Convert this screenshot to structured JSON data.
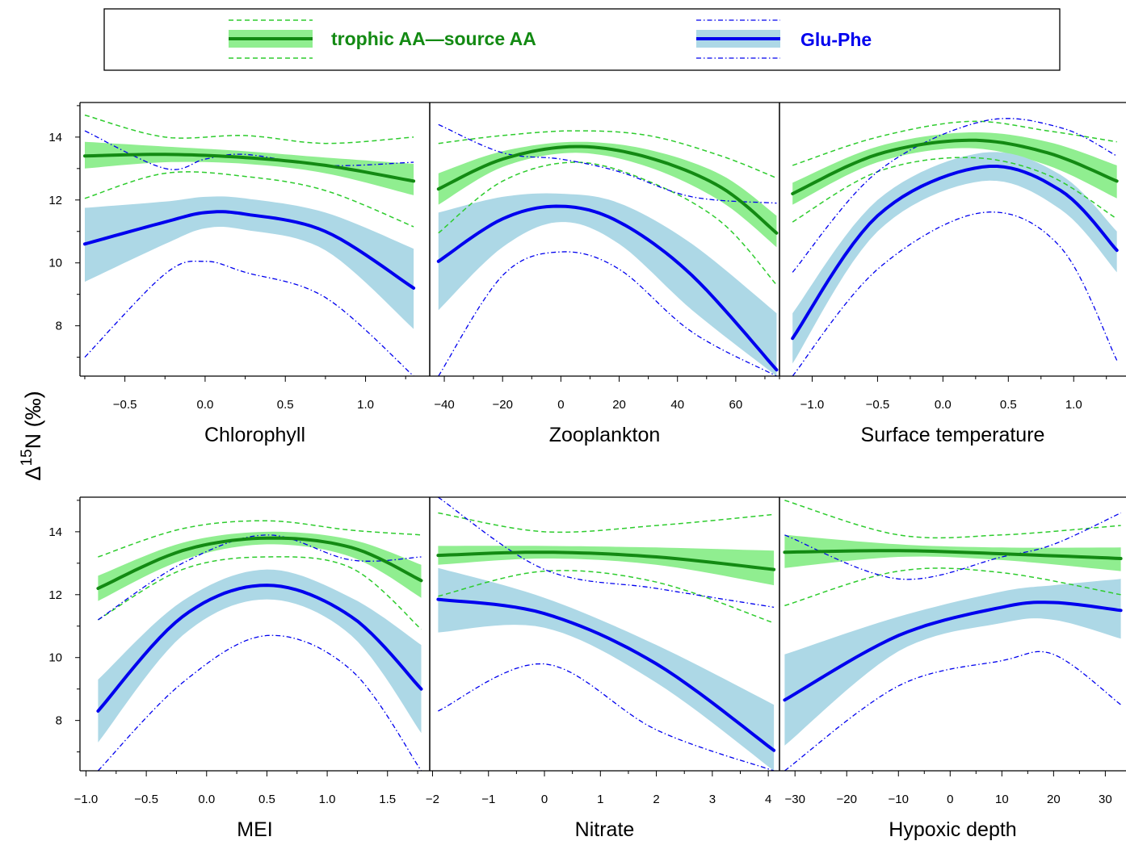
{
  "legend": {
    "entries": [
      {
        "label": "trophic AA—source AA",
        "line_color": "#138a13",
        "band_color": "#90ee90",
        "ci_line_style": "dashed"
      },
      {
        "label": "Glu-Phe",
        "line_color": "#0000ee",
        "band_color": "#add8e6",
        "ci_line_style": "dotdash"
      }
    ]
  },
  "ylabel": {
    "base": "Δ",
    "sup": "15",
    "rest": "N  (‰)"
  },
  "chart_data": [
    {
      "type": "line",
      "xlabel": "Chlorophyll",
      "xlim": [
        -0.78,
        1.4
      ],
      "ylim": [
        6.4,
        15.1
      ],
      "xticks": [
        -0.5,
        0.0,
        0.5,
        1.0
      ],
      "xtick_labels": [
        "−0.5",
        "0.0",
        "0.5",
        "1.0"
      ],
      "yticks": [
        8,
        10,
        12,
        14
      ],
      "ytick_labels": [
        "8",
        "10",
        "12",
        "14"
      ],
      "series": [
        {
          "name": "trophic AA—source AA",
          "x": [
            -0.75,
            -0.25,
            0.25,
            0.75,
            1.3
          ],
          "y": [
            13.4,
            13.45,
            13.35,
            13.1,
            12.6
          ],
          "band_upper": [
            13.85,
            13.7,
            13.55,
            13.35,
            13.15
          ],
          "band_lower": [
            13.0,
            13.2,
            13.15,
            12.85,
            12.15
          ],
          "ci_upper": [
            14.7,
            14.0,
            14.05,
            13.8,
            14.0
          ],
          "ci_lower": [
            12.05,
            12.85,
            12.75,
            12.3,
            11.15
          ]
        },
        {
          "name": "Glu-Phe",
          "x": [
            -0.75,
            -0.25,
            0.0,
            0.25,
            0.75,
            1.3
          ],
          "y": [
            10.6,
            11.3,
            11.6,
            11.55,
            11.0,
            9.2
          ],
          "band_upper": [
            11.75,
            11.95,
            12.1,
            12.05,
            11.6,
            10.45
          ],
          "band_lower": [
            9.4,
            10.6,
            11.1,
            11.05,
            10.4,
            7.9
          ],
          "ci_upper": [
            14.2,
            13.0,
            13.3,
            13.45,
            13.1,
            13.2
          ],
          "ci_lower": [
            7.0,
            9.65,
            10.05,
            9.7,
            8.9,
            6.4
          ]
        }
      ]
    },
    {
      "type": "line",
      "xlabel": "Zooplankton",
      "xlim": [
        -45,
        75
      ],
      "ylim": [
        6.4,
        15.1
      ],
      "xticks": [
        -40,
        -20,
        0,
        20,
        40,
        60
      ],
      "xtick_labels": [
        "−40",
        "−20",
        "0",
        "20",
        "40",
        "60"
      ],
      "yticks": [
        8,
        10,
        12,
        14
      ],
      "ytick_labels": [
        "8",
        "10",
        "12",
        "14"
      ],
      "series": [
        {
          "name": "trophic AA—source AA",
          "x": [
            -42,
            -20,
            5,
            30,
            55,
            74
          ],
          "y": [
            12.35,
            13.3,
            13.7,
            13.35,
            12.4,
            10.95
          ],
          "band_upper": [
            12.85,
            13.55,
            13.85,
            13.6,
            12.8,
            11.5
          ],
          "band_lower": [
            11.85,
            13.05,
            13.5,
            13.05,
            11.95,
            10.5
          ],
          "ci_upper": [
            13.8,
            14.05,
            14.2,
            14.05,
            13.4,
            12.7
          ],
          "ci_lower": [
            10.95,
            12.6,
            13.2,
            12.6,
            11.3,
            9.3
          ]
        },
        {
          "name": "Glu-Phe",
          "x": [
            -42,
            -20,
            0,
            20,
            45,
            74
          ],
          "y": [
            10.05,
            11.4,
            11.8,
            11.3,
            9.6,
            6.6
          ],
          "band_upper": [
            11.6,
            12.1,
            12.2,
            11.9,
            10.6,
            8.4
          ],
          "band_lower": [
            8.5,
            10.5,
            11.3,
            10.6,
            8.5,
            6.4
          ],
          "ci_upper": [
            14.4,
            13.5,
            13.3,
            12.9,
            12.1,
            11.9
          ],
          "ci_lower": [
            6.4,
            9.6,
            10.35,
            9.8,
            7.8,
            6.4
          ]
        }
      ]
    },
    {
      "type": "line",
      "xlabel": "Surface temperature",
      "xlim": [
        -1.25,
        1.4
      ],
      "ylim": [
        6.4,
        15.1
      ],
      "xticks": [
        -1.0,
        -0.5,
        0.0,
        0.5,
        1.0
      ],
      "xtick_labels": [
        "−1.0",
        "−0.5",
        "0.0",
        "0.5",
        "1.0"
      ],
      "yticks": [
        8,
        10,
        12,
        14
      ],
      "ytick_labels": [
        "8",
        "10",
        "12",
        "14"
      ],
      "series": [
        {
          "name": "trophic AA—source AA",
          "x": [
            -1.15,
            -0.5,
            0.2,
            0.8,
            1.33
          ],
          "y": [
            12.2,
            13.45,
            13.9,
            13.5,
            12.6
          ],
          "band_upper": [
            12.55,
            13.7,
            14.15,
            13.85,
            13.1
          ],
          "band_lower": [
            11.85,
            13.2,
            13.65,
            13.1,
            12.05
          ],
          "ci_upper": [
            13.1,
            14.0,
            14.5,
            14.2,
            13.85
          ],
          "ci_lower": [
            11.3,
            12.9,
            13.35,
            12.8,
            11.4
          ]
        },
        {
          "name": "Glu-Phe",
          "x": [
            -1.15,
            -0.5,
            0.3,
            0.9,
            1.33
          ],
          "y": [
            7.6,
            11.5,
            13.05,
            12.3,
            10.4
          ],
          "band_upper": [
            8.4,
            12.0,
            13.5,
            12.8,
            11.0
          ],
          "band_lower": [
            6.8,
            11.0,
            12.6,
            11.7,
            9.7
          ],
          "ci_upper": [
            9.7,
            12.9,
            14.5,
            14.3,
            13.4
          ],
          "ci_lower": [
            6.4,
            9.8,
            11.6,
            10.5,
            6.9
          ]
        }
      ]
    },
    {
      "type": "line",
      "xlabel": "MEI",
      "xlim": [
        -1.05,
        1.85
      ],
      "ylim": [
        6.4,
        15.1
      ],
      "xticks": [
        -1.0,
        -0.5,
        0.0,
        0.5,
        1.0,
        1.5
      ],
      "xtick_labels": [
        "−1.0",
        "−0.5",
        "0.0",
        "0.5",
        "1.0",
        "1.5"
      ],
      "yticks": [
        8,
        10,
        12,
        14
      ],
      "ytick_labels": [
        "8",
        "10",
        "12",
        "14"
      ],
      "series": [
        {
          "name": "trophic AA—source AA",
          "x": [
            -0.9,
            -0.2,
            0.5,
            1.2,
            1.78
          ],
          "y": [
            12.2,
            13.4,
            13.8,
            13.5,
            12.45
          ],
          "band_upper": [
            12.6,
            13.65,
            14.0,
            13.75,
            12.95
          ],
          "band_lower": [
            11.8,
            13.1,
            13.6,
            13.2,
            11.9
          ],
          "ci_upper": [
            13.2,
            14.1,
            14.35,
            14.05,
            13.9
          ],
          "ci_lower": [
            11.2,
            12.8,
            13.2,
            12.85,
            10.9
          ]
        },
        {
          "name": "Glu-Phe",
          "x": [
            -0.9,
            -0.2,
            0.5,
            1.2,
            1.78
          ],
          "y": [
            8.3,
            11.3,
            12.3,
            11.3,
            9.0
          ],
          "band_upper": [
            9.3,
            11.8,
            12.8,
            11.9,
            10.4
          ],
          "band_lower": [
            7.3,
            10.7,
            11.85,
            10.7,
            7.6
          ],
          "ci_upper": [
            11.2,
            13.0,
            13.9,
            13.1,
            13.2
          ],
          "ci_lower": [
            6.4,
            9.2,
            10.7,
            9.6,
            6.4
          ]
        }
      ]
    },
    {
      "type": "line",
      "xlabel": "Nitrate",
      "xlim": [
        -2.05,
        4.2
      ],
      "ylim": [
        6.4,
        15.1
      ],
      "xticks": [
        -2,
        -1,
        0,
        1,
        2,
        3,
        4
      ],
      "xtick_labels": [
        "−2",
        "−1",
        "0",
        "1",
        "2",
        "3",
        "4"
      ],
      "yticks": [
        8,
        10,
        12,
        14
      ],
      "ytick_labels": [
        "8",
        "10",
        "12",
        "14"
      ],
      "series": [
        {
          "name": "trophic AA—source AA",
          "x": [
            -1.9,
            0.0,
            2.0,
            4.1
          ],
          "y": [
            13.25,
            13.35,
            13.2,
            12.8
          ],
          "band_upper": [
            13.55,
            13.55,
            13.5,
            13.4
          ],
          "band_lower": [
            12.95,
            13.15,
            12.95,
            12.3
          ],
          "ci_upper": [
            14.6,
            14.0,
            14.2,
            14.55
          ],
          "ci_lower": [
            11.95,
            12.75,
            12.4,
            11.1
          ]
        },
        {
          "name": "Glu-Phe",
          "x": [
            -1.9,
            0.0,
            2.0,
            4.1
          ],
          "y": [
            11.85,
            11.4,
            9.8,
            7.05
          ],
          "band_upper": [
            12.85,
            11.9,
            10.4,
            8.5
          ],
          "band_lower": [
            10.8,
            10.95,
            9.2,
            6.4
          ],
          "ci_upper": [
            15.1,
            12.8,
            12.2,
            11.6
          ],
          "ci_lower": [
            8.3,
            9.8,
            7.7,
            6.4
          ]
        }
      ]
    },
    {
      "type": "line",
      "xlabel": "Hypoxic depth",
      "xlim": [
        -33,
        34
      ],
      "ylim": [
        6.4,
        15.1
      ],
      "xticks": [
        -30,
        -20,
        -10,
        0,
        10,
        20,
        30
      ],
      "xtick_labels": [
        "−30",
        "−20",
        "−10",
        "0",
        "10",
        "20",
        "30"
      ],
      "yticks": [
        8,
        10,
        12,
        14
      ],
      "ytick_labels": [
        "8",
        "10",
        "12",
        "14"
      ],
      "series": [
        {
          "name": "trophic AA—source AA",
          "x": [
            -32,
            -10,
            10,
            33
          ],
          "y": [
            13.35,
            13.4,
            13.3,
            13.15
          ],
          "band_upper": [
            13.9,
            13.6,
            13.5,
            13.5
          ],
          "band_lower": [
            12.85,
            13.2,
            13.1,
            12.75
          ],
          "ci_upper": [
            15.0,
            13.9,
            13.9,
            14.2
          ],
          "ci_lower": [
            11.65,
            12.75,
            12.7,
            12.0
          ]
        },
        {
          "name": "Glu-Phe",
          "x": [
            -32,
            -10,
            10,
            20,
            33
          ],
          "y": [
            8.65,
            10.7,
            11.6,
            11.75,
            11.5
          ],
          "band_upper": [
            10.1,
            11.3,
            12.1,
            12.3,
            12.5
          ],
          "band_lower": [
            7.2,
            10.2,
            11.1,
            11.2,
            10.6
          ],
          "ci_upper": [
            13.9,
            12.5,
            13.2,
            13.6,
            14.6
          ],
          "ci_lower": [
            6.4,
            9.1,
            9.9,
            10.1,
            8.5
          ]
        }
      ]
    }
  ]
}
